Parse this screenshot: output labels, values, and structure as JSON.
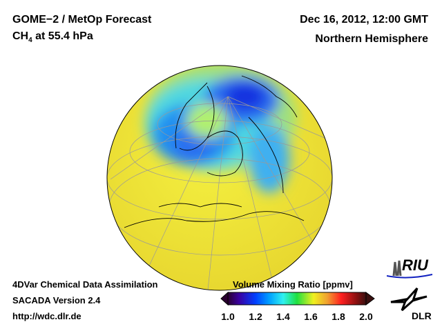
{
  "header": {
    "title": "GOME−2 / MetOp Forecast",
    "species": "CH",
    "species_sub": "4",
    "species_level": " at 55.4 hPa",
    "datetime": "Dec 16, 2012, 12:00 GMT",
    "region": "Northern Hemisphere"
  },
  "footer": {
    "line1": "4DVar Chemical Data Assimilation",
    "line2": "SACADA Version 2.4",
    "line3": "http://wdc.dlr.de"
  },
  "colorbar": {
    "title": "Volume Mixing Ratio [ppmv]",
    "ticks": [
      "1.0",
      "1.2",
      "1.4",
      "1.6",
      "1.8",
      "2.0"
    ],
    "range": [
      1.0,
      2.0
    ],
    "colors": [
      "#2a0030",
      "#3a00a0",
      "#0040ff",
      "#00a0ff",
      "#30f0f0",
      "#20e040",
      "#f0f020",
      "#f0a030",
      "#ff2020",
      "#8a1010",
      "#3a1010"
    ]
  },
  "logos": {
    "riu": "RIU",
    "dlr": "DLR"
  }
}
